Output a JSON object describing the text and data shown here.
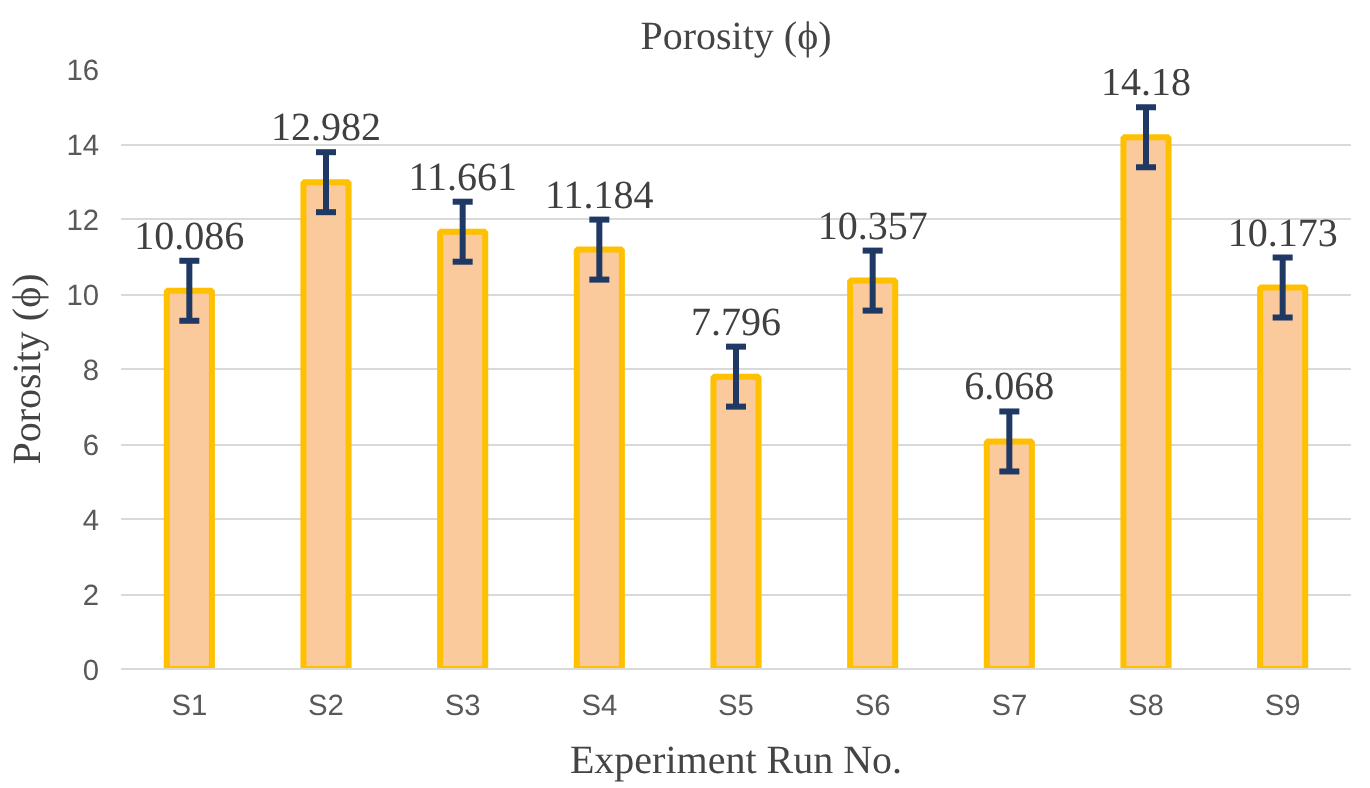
{
  "chart_data": {
    "type": "bar",
    "title": "Porosity (ϕ)",
    "xlabel": "Experiment Run No.",
    "ylabel": "Porosity (ϕ)",
    "categories": [
      "S1",
      "S2",
      "S3",
      "S4",
      "S5",
      "S6",
      "S7",
      "S8",
      "S9"
    ],
    "series": [
      {
        "color": "#fbca9c",
        "values": [
          10.086,
          12.982,
          11.661,
          11.184,
          7.796,
          10.357,
          6.068,
          14.18,
          10.173
        ],
        "errors": [
          0.8,
          0.8,
          0.8,
          0.8,
          0.8,
          0.8,
          0.8,
          0.8,
          0.8
        ]
      }
    ],
    "ylim": [
      0,
      16
    ],
    "yticks": [
      0,
      2,
      4,
      6,
      8,
      10,
      12,
      14,
      16
    ],
    "grid": "y",
    "data_labels": true
  }
}
